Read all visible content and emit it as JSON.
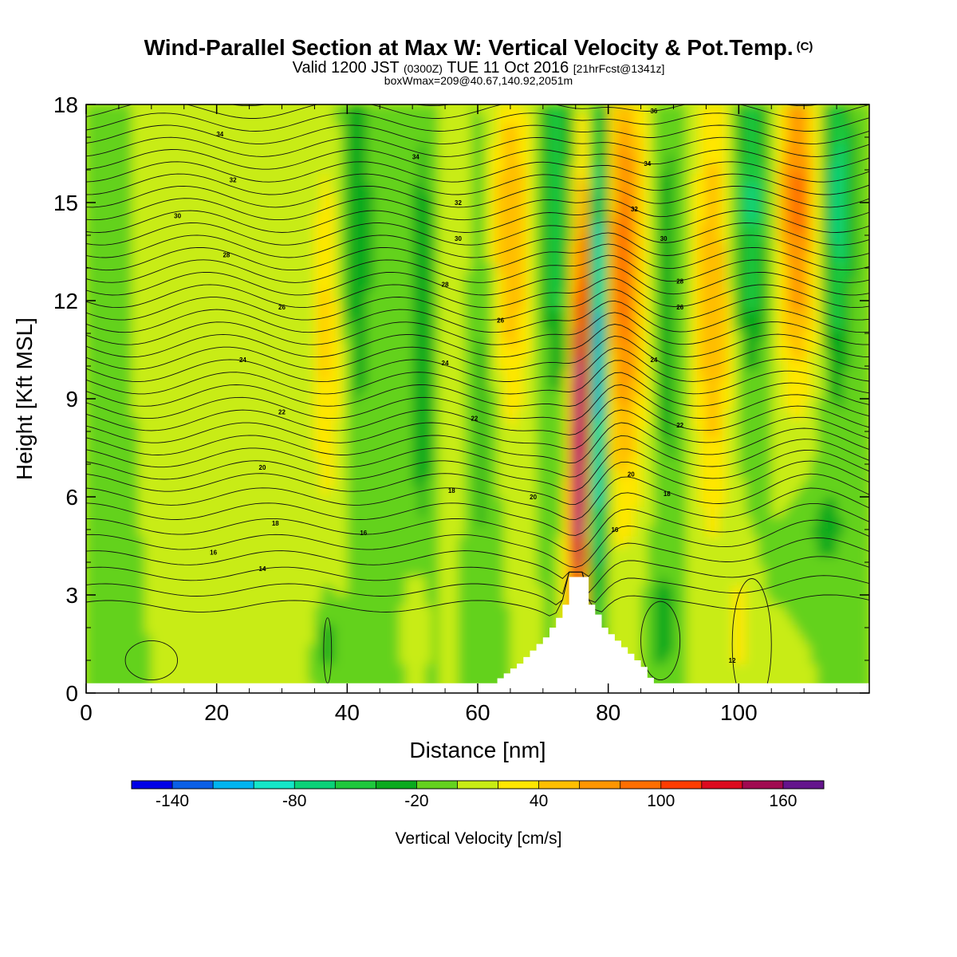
{
  "header": {
    "title": "Wind-Parallel Section at Max W: Vertical Velocity & Pot.Temp.",
    "title_unit": "(C)",
    "subtitle_a": "Valid 1200 JST",
    "subtitle_b": "(0300Z)",
    "subtitle_c": "TUE 11 Oct 2016",
    "subtitle_d": "[21hrFcst@1341z]",
    "line3": "boxWmax=209@40.67,140.92,2051m"
  },
  "chart_data": {
    "type": "heatmap",
    "title": "Wind-Parallel Section at Max W: Vertical Velocity & Pot.Temp. (C)",
    "xlabel": "Distance [nm]",
    "ylabel": "Height [Kft MSL]",
    "xlim": [
      0,
      120
    ],
    "ylim": [
      0,
      18
    ],
    "xticks": [
      "0",
      "20",
      "40",
      "60",
      "80",
      "100"
    ],
    "yticks": [
      "0",
      "3",
      "6",
      "9",
      "12",
      "15",
      "18"
    ],
    "xtick_values": [
      0,
      20,
      40,
      60,
      80,
      100
    ],
    "ytick_values": [
      0,
      3,
      6,
      9,
      12,
      15,
      18
    ],
    "colorbar": {
      "label": "Vertical Velocity [cm/s]",
      "ticks": [
        "-140",
        "-80",
        "-20",
        "40",
        "100",
        "160"
      ],
      "tick_values": [
        -140,
        -80,
        -20,
        40,
        100,
        160
      ],
      "levels": [
        -160,
        -140,
        -120,
        -100,
        -80,
        -60,
        -40,
        -20,
        0,
        20,
        40,
        60,
        80,
        100,
        120,
        140,
        160,
        180
      ],
      "colors": [
        "#0000e6",
        "#0a5fe6",
        "#00b4f0",
        "#14e6c8",
        "#0ad278",
        "#1ec83c",
        "#0aaa1e",
        "#64d21e",
        "#c8ec14",
        "#ffe600",
        "#ffbe00",
        "#ff9600",
        "#ff6e00",
        "#ff3c00",
        "#dc0a1e",
        "#a00a50",
        "#64148c"
      ]
    },
    "terrain": {
      "x": [
        0,
        62,
        64,
        66,
        68,
        70,
        71,
        72,
        73,
        73.5,
        76,
        76.5,
        77,
        78,
        79,
        81,
        83,
        85,
        86.5,
        120
      ],
      "height": [
        0.3,
        0.3,
        0.6,
        0.9,
        1.3,
        1.7,
        2.0,
        2.3,
        2.7,
        3.55,
        3.55,
        3.0,
        2.7,
        2.4,
        2.0,
        1.6,
        1.2,
        0.8,
        0.3,
        0.3
      ]
    },
    "contour_labels": [
      {
        "text": "34",
        "x": 20.5,
        "y": 17.1
      },
      {
        "text": "32",
        "x": 22.5,
        "y": 15.7
      },
      {
        "text": "30",
        "x": 14,
        "y": 14.6
      },
      {
        "text": "28",
        "x": 21.5,
        "y": 13.4
      },
      {
        "text": "26",
        "x": 30,
        "y": 11.8
      },
      {
        "text": "24",
        "x": 24,
        "y": 10.2
      },
      {
        "text": "22",
        "x": 30,
        "y": 8.6
      },
      {
        "text": "20",
        "x": 27,
        "y": 6.9
      },
      {
        "text": "18",
        "x": 29,
        "y": 5.2
      },
      {
        "text": "16",
        "x": 19.5,
        "y": 4.3
      },
      {
        "text": "14",
        "x": 27,
        "y": 3.8
      },
      {
        "text": "34",
        "x": 50.5,
        "y": 16.4
      },
      {
        "text": "32",
        "x": 57,
        "y": 15.0
      },
      {
        "text": "30",
        "x": 57,
        "y": 13.9
      },
      {
        "text": "28",
        "x": 55,
        "y": 12.5
      },
      {
        "text": "26",
        "x": 63.5,
        "y": 11.4
      },
      {
        "text": "24",
        "x": 55,
        "y": 10.1
      },
      {
        "text": "22",
        "x": 59.5,
        "y": 8.4
      },
      {
        "text": "18",
        "x": 56,
        "y": 6.2
      },
      {
        "text": "20",
        "x": 68.5,
        "y": 6.0
      },
      {
        "text": "16",
        "x": 42.5,
        "y": 4.9
      },
      {
        "text": "36",
        "x": 87,
        "y": 17.8
      },
      {
        "text": "34",
        "x": 86,
        "y": 16.2
      },
      {
        "text": "32",
        "x": 84,
        "y": 14.8
      },
      {
        "text": "30",
        "x": 88.5,
        "y": 13.9
      },
      {
        "text": "28",
        "x": 91,
        "y": 12.6
      },
      {
        "text": "26",
        "x": 91,
        "y": 11.8
      },
      {
        "text": "24",
        "x": 87,
        "y": 10.2
      },
      {
        "text": "22",
        "x": 91,
        "y": 8.2
      },
      {
        "text": "20",
        "x": 83.5,
        "y": 6.7
      },
      {
        "text": "18",
        "x": 89,
        "y": 6.1
      },
      {
        "text": "16",
        "x": 81,
        "y": 5.0
      },
      {
        "text": "12",
        "x": 99,
        "y": 1.0
      }
    ]
  }
}
